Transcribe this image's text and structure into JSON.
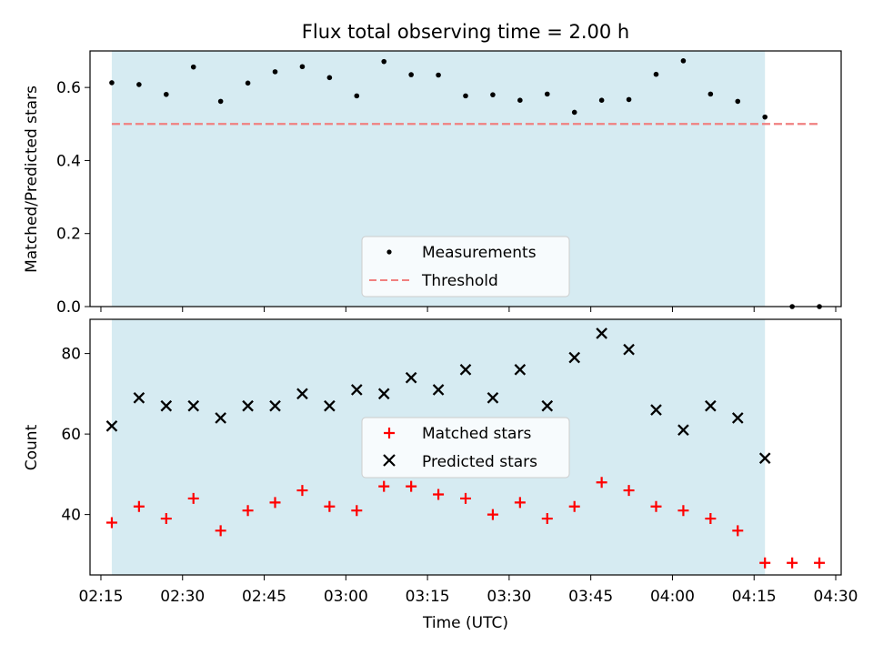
{
  "title": "Flux total observing time = 2.00 h",
  "colors": {
    "span": "#add8e6",
    "measurements": "#000000",
    "threshold": "#f08080",
    "matched": "#ff0000",
    "predicted": "#000000"
  },
  "chart_data": [
    {
      "type": "scatter",
      "ylabel": "Matched/Predicted stars",
      "ylim": [
        0,
        0.7
      ],
      "yticks": [
        0.0,
        0.2,
        0.4,
        0.6
      ],
      "ytick_labels": [
        "0.0",
        "0.2",
        "0.4",
        "0.6"
      ],
      "shaded_span": {
        "start": "02:17",
        "end": "04:17"
      },
      "legend": {
        "placement": "lower center",
        "entries": [
          "Measurements",
          "Threshold"
        ]
      },
      "series": [
        {
          "name": "Measurements",
          "marker": "dot",
          "x": [
            "02:17",
            "02:22",
            "02:27",
            "02:32",
            "02:37",
            "02:42",
            "02:47",
            "02:52",
            "02:57",
            "03:02",
            "03:07",
            "03:12",
            "03:17",
            "03:22",
            "03:27",
            "03:32",
            "03:37",
            "03:42",
            "03:47",
            "03:52",
            "03:57",
            "04:02",
            "04:07",
            "04:12",
            "04:17",
            "04:22",
            "04:27"
          ],
          "values": [
            0.613,
            0.608,
            0.581,
            0.656,
            0.562,
            0.612,
            0.643,
            0.657,
            0.627,
            0.577,
            0.671,
            0.635,
            0.634,
            0.577,
            0.58,
            0.565,
            0.582,
            0.532,
            0.565,
            0.567,
            0.636,
            0.673,
            0.582,
            0.562,
            0.519,
            0.0,
            0.0
          ]
        },
        {
          "name": "Threshold",
          "style": "dashed",
          "x": [
            "02:17",
            "04:27"
          ],
          "values": [
            0.5,
            0.5
          ]
        }
      ]
    },
    {
      "type": "scatter",
      "xlabel": "Time (UTC)",
      "ylabel": "Count",
      "ylim": [
        25,
        88.5
      ],
      "yticks": [
        40,
        60,
        80
      ],
      "ytick_labels": [
        "40",
        "60",
        "80"
      ],
      "xlim": [
        "02:13",
        "04:31"
      ],
      "xticks": [
        "02:15",
        "02:30",
        "02:45",
        "03:00",
        "03:15",
        "03:30",
        "03:45",
        "04:00",
        "04:15",
        "04:30"
      ],
      "shaded_span": {
        "start": "02:17",
        "end": "04:17"
      },
      "legend": {
        "placement": "center",
        "entries": [
          "Matched stars",
          "Predicted stars"
        ]
      },
      "series": [
        {
          "name": "Matched stars",
          "marker": "plus",
          "x": [
            "02:17",
            "02:22",
            "02:27",
            "02:32",
            "02:37",
            "02:42",
            "02:47",
            "02:52",
            "02:57",
            "03:02",
            "03:07",
            "03:12",
            "03:17",
            "03:22",
            "03:27",
            "03:32",
            "03:37",
            "03:42",
            "03:47",
            "03:52",
            "03:57",
            "04:02",
            "04:07",
            "04:12",
            "04:17",
            "04:22",
            "04:27"
          ],
          "values": [
            38,
            42,
            39,
            44,
            36,
            41,
            43,
            46,
            42,
            41,
            47,
            47,
            45,
            44,
            40,
            43,
            39,
            42,
            48,
            46,
            42,
            41,
            39,
            36,
            28,
            28,
            28
          ]
        },
        {
          "name": "Predicted stars",
          "marker": "x",
          "x": [
            "02:17",
            "02:22",
            "02:27",
            "02:32",
            "02:37",
            "02:42",
            "02:47",
            "02:52",
            "02:57",
            "03:02",
            "03:07",
            "03:12",
            "03:17",
            "03:22",
            "03:27",
            "03:32",
            "03:37",
            "03:42",
            "03:47",
            "03:52",
            "03:57",
            "04:02",
            "04:07",
            "04:12",
            "04:17"
          ],
          "values": [
            62,
            69,
            67,
            67,
            64,
            67,
            67,
            70,
            67,
            71,
            70,
            74,
            71,
            76,
            69,
            76,
            67,
            79,
            85,
            81,
            66,
            61,
            67,
            64,
            54
          ]
        }
      ]
    }
  ]
}
